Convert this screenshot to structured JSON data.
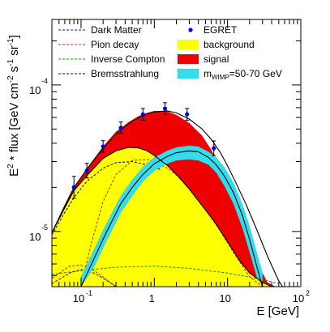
{
  "chart_data": {
    "type": "line",
    "x_scale": "log",
    "y_scale": "log",
    "xlim": [
      0.04,
      100
    ],
    "ylim": [
      4.2e-06,
      0.00028
    ],
    "xlabel": "E [GeV]",
    "ylabel_parts": {
      "main": "E",
      "sup_2": "2",
      "mid": " * flux [GeV cm",
      "sup_neg2": "-2",
      "s": " s",
      "sup_neg1a": "-1",
      "sr": " sr",
      "sup_neg1b": "-1",
      "close": "]"
    },
    "x_ticks": [
      {
        "value": 0.1,
        "base": "10",
        "exp": "-1"
      },
      {
        "value": 1,
        "base": "1",
        "exp": ""
      },
      {
        "value": 10,
        "base": "10",
        "exp": ""
      },
      {
        "value": 100,
        "base": "10",
        "exp": "2"
      }
    ],
    "y_ticks": [
      {
        "value": 1e-05,
        "base": "10",
        "exp": "-5"
      },
      {
        "value": 0.0001,
        "base": "10",
        "exp": "-4"
      }
    ],
    "legend": {
      "left": [
        {
          "label": "Dark Matter",
          "color": "#1a1aa6",
          "style": "dashed"
        },
        {
          "label": "Pion decay",
          "color": "#cc2222",
          "style": "dashed"
        },
        {
          "label": "Inverse Compton",
          "color": "#1a8a1a",
          "style": "dashed"
        },
        {
          "label": "Bremsstrahlung",
          "color": "#000066",
          "style": "dashed"
        }
      ],
      "right": [
        {
          "label": "EGRET",
          "color": "#0000ee",
          "style": "marker"
        },
        {
          "label": "background",
          "color": "#ffff00",
          "style": "box"
        },
        {
          "label": "signal",
          "color": "#ee0000",
          "style": "box"
        },
        {
          "label_main": "m",
          "label_sub": "WIMP",
          "label_rest": "=50-70 GeV",
          "color": "#33ddee",
          "style": "band"
        }
      ]
    },
    "series": [
      {
        "name": "EGRET",
        "type": "points",
        "color": "#0000ee",
        "x": [
          0.08,
          0.12,
          0.2,
          0.35,
          0.7,
          1.4,
          2.8,
          6.5
        ],
        "y": [
          2e-05,
          2.6e-05,
          3.8e-05,
          5.1e-05,
          6.3e-05,
          6.9e-05,
          6.3e-05,
          3.7e-05
        ],
        "err": [
          0.15,
          0.1,
          0.08,
          0.08,
          0.08,
          0.08,
          0.08,
          0.1
        ]
      },
      {
        "name": "background",
        "type": "fill",
        "color": "#ffff00",
        "x": [
          0.04,
          0.06,
          0.08,
          0.12,
          0.2,
          0.3,
          0.45,
          0.6,
          0.8,
          1.0,
          1.5,
          2.0,
          3.0,
          5.0,
          7.0,
          10.0,
          15.0,
          20.0,
          30.0,
          40.0,
          50.0
        ],
        "y": [
          9.8e-06,
          1.45e-05,
          1.9e-05,
          2.4e-05,
          3.15e-05,
          3.55e-05,
          3.75e-05,
          3.72e-05,
          3.55e-05,
          3.3e-05,
          2.83e-05,
          2.45e-05,
          1.95e-05,
          1.4e-05,
          1.12e-05,
          8.5e-06,
          6.2e-06,
          5.2e-06,
          4.5e-06,
          4.2e-06,
          4.2e-06
        ]
      },
      {
        "name": "signal",
        "type": "fill",
        "color": "#ee0000",
        "x": [
          0.04,
          0.06,
          0.08,
          0.12,
          0.2,
          0.3,
          0.45,
          0.6,
          0.8,
          1.0,
          1.5,
          2.0,
          3.0,
          4.5,
          6.0,
          8.0,
          10.0,
          13.0,
          18.0,
          25.0,
          35.0,
          45.0,
          55.0
        ],
        "y": [
          9.8e-06,
          1.5e-05,
          2e-05,
          2.7e-05,
          3.8e-05,
          4.8e-05,
          5.6e-05,
          6.1e-05,
          6.45e-05,
          6.65e-05,
          6.6e-05,
          6.25e-05,
          5.5e-05,
          4.5e-05,
          3.6e-05,
          2.7e-05,
          2.05e-05,
          1.45e-05,
          9.3e-06,
          6.2e-06,
          4.5e-06,
          4.2e-06,
          4.2e-06
        ]
      },
      {
        "name": "total",
        "type": "line",
        "color": "#000000",
        "x": [
          0.04,
          0.06,
          0.08,
          0.12,
          0.2,
          0.3,
          0.45,
          0.6,
          0.8,
          1.0,
          1.5,
          2.0,
          3.0,
          4.5,
          6.0,
          8.0,
          10.0,
          13.0,
          18.0,
          25.0,
          35.0,
          50.0,
          60.0
        ],
        "y": [
          9.8e-06,
          1.5e-05,
          2e-05,
          2.65e-05,
          3.7e-05,
          4.6e-05,
          5.45e-05,
          5.95e-05,
          6.35e-05,
          6.55e-05,
          6.65e-05,
          6.45e-05,
          5.85e-05,
          5e-05,
          4.25e-05,
          3.45e-05,
          2.8e-05,
          2.15e-05,
          1.52e-05,
          1.03e-05,
          6.8e-06,
          4.6e-06,
          4e-06
        ]
      },
      {
        "name": "dark matter signal",
        "type": "line",
        "color": "#000000",
        "x": [
          0.1,
          0.15,
          0.22,
          0.35,
          0.5,
          0.7,
          1.0,
          1.5,
          2.0,
          3.0,
          4.0,
          5.5,
          7.0,
          9.0,
          12.0,
          16.0,
          20.0,
          25.0,
          30.0
        ],
        "y": [
          4.2e-06,
          6.5e-06,
          9.8e-06,
          1.55e-05,
          2e-05,
          2.45e-05,
          2.9e-05,
          3.25e-05,
          3.45e-05,
          3.55e-05,
          3.5e-05,
          3.2e-05,
          2.85e-05,
          2.4e-05,
          1.85e-05,
          1.28e-05,
          8.8e-06,
          5.8e-06,
          4.2e-06
        ]
      },
      {
        "name": "background outline",
        "type": "line",
        "color": "#000000",
        "x": [
          0.04,
          0.06,
          0.08,
          0.12,
          0.2,
          0.3,
          0.45,
          0.6,
          0.8,
          1.0,
          1.5,
          2.0,
          3.0,
          5.0,
          7.0,
          10.0,
          15.0,
          20.0,
          30.0,
          40.0,
          50.0
        ],
        "y": [
          9.8e-06,
          1.45e-05,
          1.9e-05,
          2.4e-05,
          3.15e-05,
          3.55e-05,
          3.75e-05,
          3.72e-05,
          3.55e-05,
          3.3e-05,
          2.83e-05,
          2.45e-05,
          1.95e-05,
          1.4e-05,
          1.12e-05,
          8.5e-06,
          6.2e-06,
          5.2e-06,
          4.5e-06,
          4.2e-06,
          4.2e-06
        ]
      },
      {
        "name": "Pion decay",
        "type": "line",
        "color": "#cc2222",
        "x": [
          0.1,
          0.14,
          0.2,
          0.3,
          0.5,
          0.8,
          1.0,
          1.5,
          2.0,
          3.0,
          5.0,
          8.0,
          12.0,
          20.0,
          30.0
        ],
        "y": [
          4.2e-06,
          8.5e-06,
          1.6e-05,
          2.45e-05,
          3.05e-05,
          3.1e-05,
          3e-05,
          2.7e-05,
          2.43e-05,
          1.98e-05,
          1.42e-05,
          1e-05,
          7.2e-06,
          4.9e-06,
          4.2e-06
        ]
      },
      {
        "name": "Pion decay low",
        "type": "line",
        "color": "#cc2222",
        "x": [
          0.04,
          0.07,
          0.1,
          0.15,
          0.2,
          0.3
        ],
        "y": [
          4.8e-06,
          5.8e-06,
          5.9e-06,
          5.4e-06,
          4.9e-06,
          4.2e-06
        ]
      },
      {
        "name": "Inverse Compton",
        "type": "line",
        "color": "#1a8a1a",
        "x": [
          0.04,
          0.1,
          0.3,
          1.0,
          3.0,
          10.0,
          30.0,
          50.0
        ],
        "y": [
          5.1e-06,
          5.4e-06,
          5.7e-06,
          5.8e-06,
          5.6e-06,
          5.2e-06,
          4.7e-06,
          4.4e-06
        ]
      },
      {
        "name": "Bremsstrahlung",
        "type": "line",
        "color": "#000066",
        "x": [
          0.04,
          0.06,
          0.08,
          0.12,
          0.2,
          0.3,
          0.5,
          0.8,
          1.2
        ],
        "y": [
          9.5e-06,
          1.35e-05,
          1.7e-05,
          2.2e-05,
          2.7e-05,
          2.95e-05,
          3e-05,
          2.85e-05,
          2.65e-05
        ]
      },
      {
        "name": "Dark Matter",
        "type": "line",
        "color": "#1a1aa6",
        "x": [
          0.04,
          0.07,
          0.1,
          0.15,
          0.2,
          0.3
        ],
        "y": [
          4.4e-06,
          5.2e-06,
          5.5e-06,
          5.2e-06,
          4.8e-06,
          4.2e-06
        ]
      }
    ],
    "wimp_band": {
      "name": "m_WIMP=50-70 GeV",
      "color": "#33ddee",
      "x": [
        0.1,
        0.15,
        0.22,
        0.35,
        0.5,
        0.7,
        1.0,
        1.5,
        2.0,
        3.0,
        4.0,
        5.5,
        7.0,
        9.0,
        12.0,
        16.0,
        20.0,
        25.0,
        30.0
      ],
      "upper": [
        4.9e-06,
        7.5e-06,
        1.12e-05,
        1.75e-05,
        2.25e-05,
        2.75e-05,
        3.2e-05,
        3.55e-05,
        3.75e-05,
        3.85e-05,
        3.8e-05,
        3.5e-05,
        3.2e-05,
        2.75e-05,
        2.15e-05,
        1.52e-05,
        1.08e-05,
        7.2e-06,
        5.2e-06
      ],
      "lower": [
        4.2e-06,
        5.7e-06,
        8.5e-06,
        1.35e-05,
        1.75e-05,
        2.2e-05,
        2.6e-05,
        2.9e-05,
        3.05e-05,
        3.1e-05,
        3.05e-05,
        2.85e-05,
        2.52e-05,
        2.05e-05,
        1.55e-05,
        1.05e-05,
        7.2e-06,
        4.9e-06,
        4.2e-06
      ]
    }
  }
}
